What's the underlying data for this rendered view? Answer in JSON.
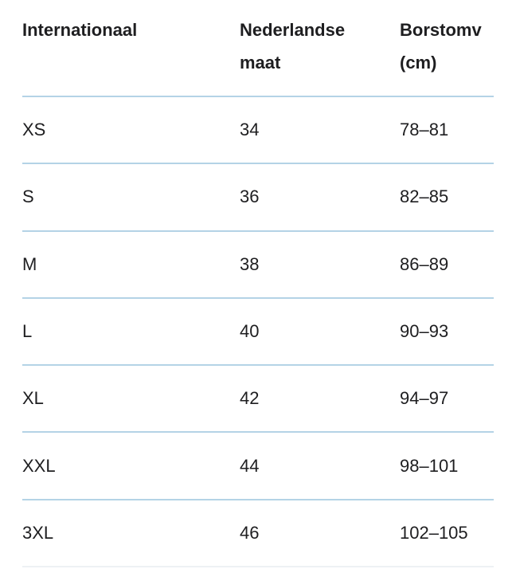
{
  "table": {
    "header": {
      "col1": {
        "line1": "Internationaal",
        "line2": ""
      },
      "col2": {
        "line1": "Nederlandse",
        "line2": "maat"
      },
      "col3": {
        "line1": "Borstomv",
        "line2": "(cm)"
      }
    },
    "rows": [
      {
        "international": "XS",
        "dutch_size": "34",
        "chest_cm": "78–81"
      },
      {
        "international": "S",
        "dutch_size": "36",
        "chest_cm": "82–85"
      },
      {
        "international": "M",
        "dutch_size": "38",
        "chest_cm": "86–89"
      },
      {
        "international": "L",
        "dutch_size": "40",
        "chest_cm": "90–93"
      },
      {
        "international": "XL",
        "dutch_size": "42",
        "chest_cm": "94–97"
      },
      {
        "international": "XXL",
        "dutch_size": "44",
        "chest_cm": "98–101"
      },
      {
        "international": "3XL",
        "dutch_size": "46",
        "chest_cm": "102–105"
      }
    ],
    "colors": {
      "text": "#1e1e20",
      "divider": "#b4d3e6",
      "bottom_divider": "#eef1f4",
      "background": "#ffffff"
    }
  },
  "chart_data": {
    "type": "table",
    "title": "",
    "columns": [
      "Internationaal",
      "Nederlandse maat",
      "Borstomv (cm)"
    ],
    "rows": [
      [
        "XS",
        34,
        "78–81"
      ],
      [
        "S",
        36,
        "82–85"
      ],
      [
        "M",
        38,
        "86–89"
      ],
      [
        "L",
        40,
        "90–93"
      ],
      [
        "XL",
        42,
        "94–97"
      ],
      [
        "XXL",
        44,
        "98–101"
      ],
      [
        "3XL",
        46,
        "102–105"
      ]
    ]
  }
}
